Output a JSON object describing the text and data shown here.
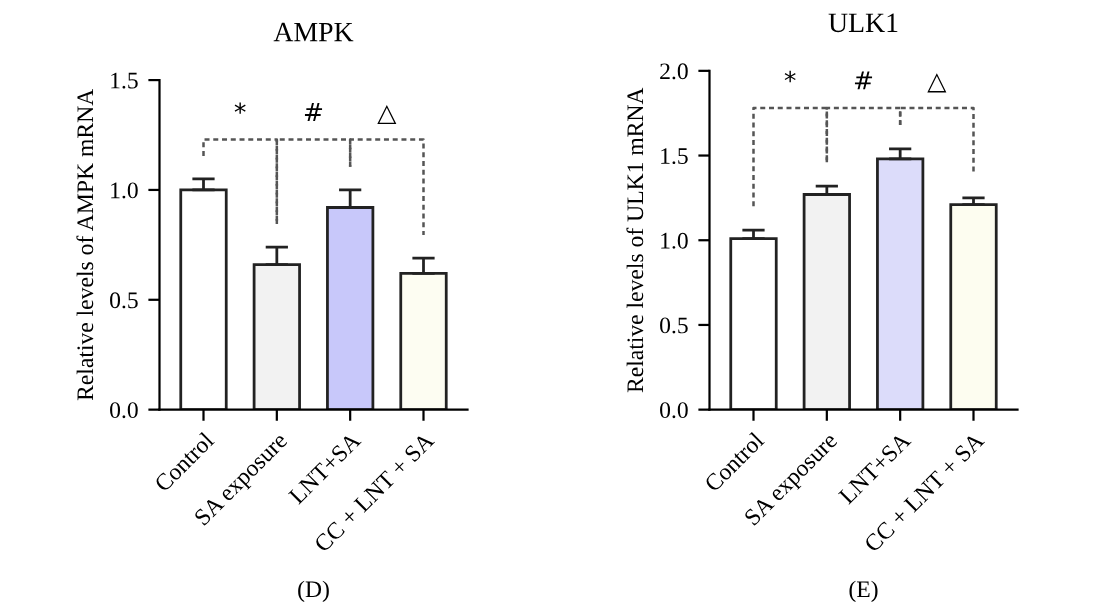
{
  "chart_data": [
    {
      "type": "bar",
      "title": "AMPK",
      "ylabel": "Relative levels of AMPK mRNA",
      "categories": [
        "Control",
        "SA exposure",
        "LNT+SA",
        "CC + LNT + SA"
      ],
      "values": [
        1.0,
        0.66,
        0.92,
        0.62
      ],
      "errors": [
        0.05,
        0.08,
        0.08,
        0.07
      ],
      "colors": [
        "#ffffff",
        "#f2f2f2",
        "#c8c8fa",
        "#fdfdf2"
      ],
      "ylim": [
        0,
        1.5
      ],
      "yticks": [
        {
          "value": 0,
          "label": "0.0"
        },
        {
          "value": 0.5,
          "label": "0.5"
        },
        {
          "value": 1.0,
          "label": "1.0"
        },
        {
          "value": 1.5,
          "label": "1.5"
        }
      ],
      "annotations": [
        "*",
        "#",
        "△",
        "(D)"
      ]
    },
    {
      "type": "bar",
      "title": "ULK1",
      "ylabel": "Relative levels of ULK1 mRNA",
      "categories": [
        "Control",
        "SA exposure",
        "LNT+SA",
        "CC + LNT + SA"
      ],
      "values": [
        1.01,
        1.27,
        1.48,
        1.21
      ],
      "errors": [
        0.05,
        0.05,
        0.06,
        0.04
      ],
      "colors": [
        "#ffffff",
        "#f2f2f2",
        "#dcdcfa",
        "#fdfdf0"
      ],
      "ylim": [
        0,
        2.0
      ],
      "yticks": [
        {
          "value": 0,
          "label": "0.0"
        },
        {
          "value": 0.5,
          "label": "0.5"
        },
        {
          "value": 1.0,
          "label": "1.0"
        },
        {
          "value": 1.5,
          "label": "1.5"
        },
        {
          "value": 2.0,
          "label": "2.0"
        }
      ],
      "annotations": [
        "*",
        "#",
        "△",
        "(E)"
      ]
    }
  ]
}
